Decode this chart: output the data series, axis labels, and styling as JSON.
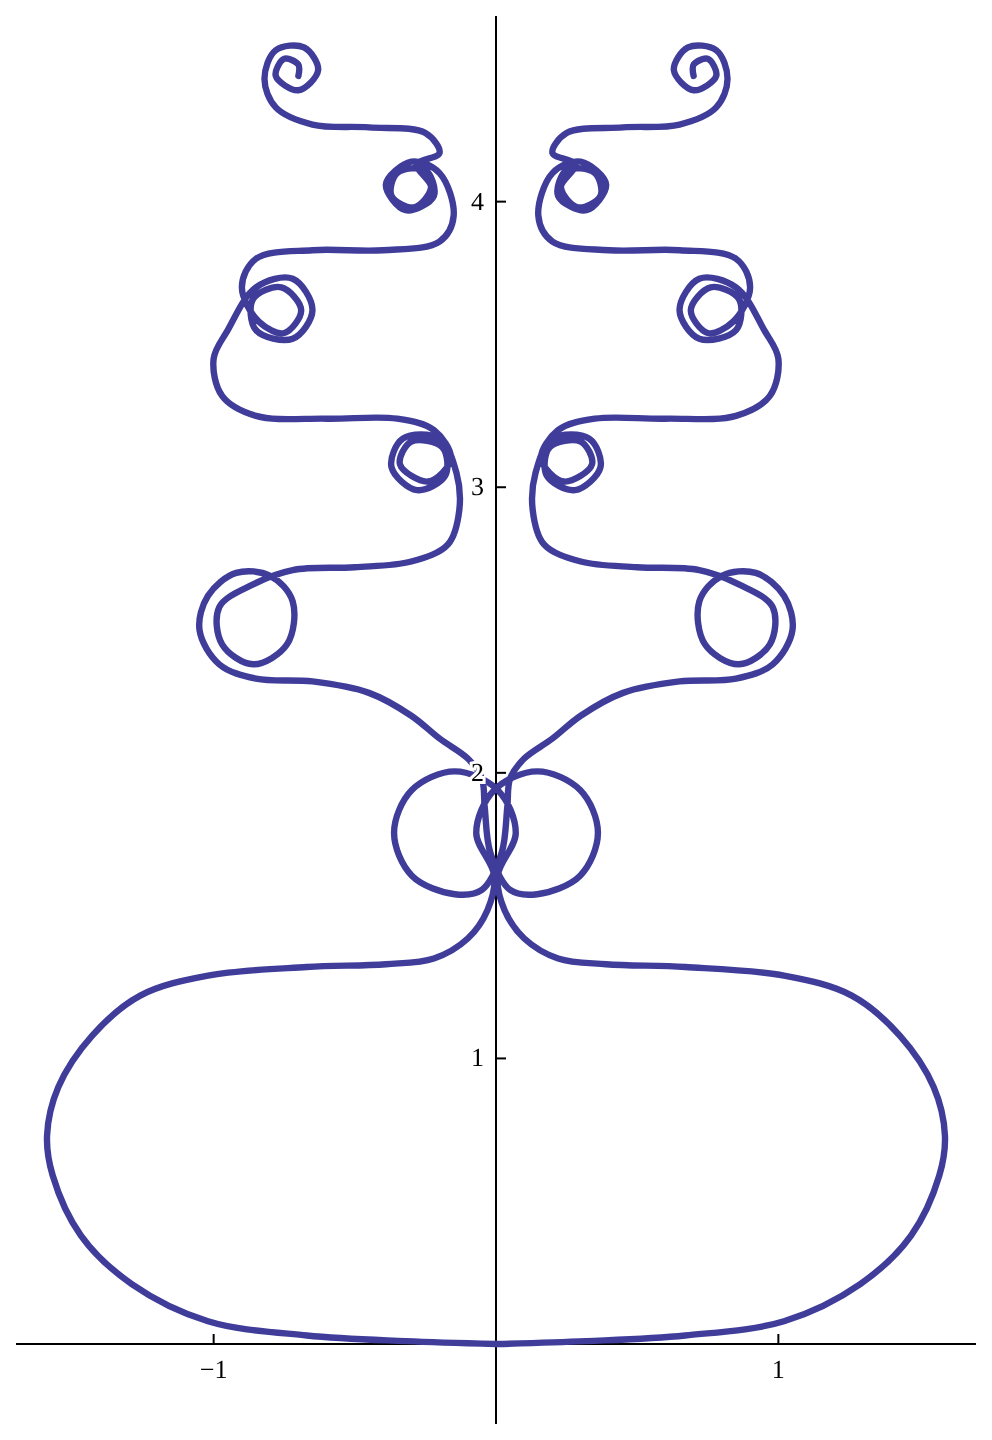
{
  "chart_data": {
    "type": "line",
    "xlim": [
      -1.7,
      1.7
    ],
    "ylim": [
      -0.28,
      4.65
    ],
    "xticks": [
      {
        "value": -1,
        "label": "−1"
      },
      1
    ],
    "yticks": [
      1,
      2,
      3,
      4
    ],
    "series": [
      {
        "color": "#3f3d99",
        "x": [
          0,
          0.32,
          0.67,
          1.02,
          1.29,
          1.47,
          1.57,
          1.59,
          1.55,
          1.43,
          1.26,
          1.02,
          0.67,
          0.39,
          0.22,
          0.1,
          0.03,
          0.006,
          0.07,
          0.006,
          -0.146,
          -0.298,
          -0.361,
          -0.298,
          -0.146,
          -0.05,
          0.02,
          0.04,
          0.05,
          0.1,
          0.2,
          0.3,
          0.45,
          0.65,
          0.85,
          0.98,
          1.05,
          1.02,
          0.92,
          0.8,
          0.72,
          0.74,
          0.86,
          0.97,
          0.98,
          0.86,
          0.72,
          0.5,
          0.3,
          0.17,
          0.13,
          0.14,
          0.2,
          0.33,
          0.37,
          0.28,
          0.18,
          0.19,
          0.3,
          0.34,
          0.24,
          0.16,
          0.22,
          0.35,
          0.6,
          0.85,
          0.97,
          1.0,
          0.95,
          0.85,
          0.72,
          0.65,
          0.72,
          0.85,
          0.86,
          0.76,
          0.69,
          0.75,
          0.84,
          0.9,
          0.85,
          0.65,
          0.4,
          0.2,
          0.15,
          0.2,
          0.3,
          0.39,
          0.32,
          0.22,
          0.25,
          0.35,
          0.37,
          0.29,
          0.23,
          0.28,
          0.2,
          0.25,
          0.45,
          0.65,
          0.78,
          0.82,
          0.78,
          0.68,
          0.63,
          0.7,
          0.78,
          0.75,
          0.7,
          0.7
        ],
        "values": [
          0,
          0.01,
          0.03,
          0.08,
          0.21,
          0.38,
          0.59,
          0.73,
          0.9,
          1.08,
          1.22,
          1.29,
          1.32,
          1.33,
          1.35,
          1.42,
          1.52,
          1.64,
          1.79,
          1.94,
          2.005,
          1.94,
          1.79,
          1.64,
          1.575,
          1.59,
          1.72,
          1.88,
          1.98,
          2.05,
          2.12,
          2.2,
          2.28,
          2.32,
          2.33,
          2.38,
          2.5,
          2.62,
          2.7,
          2.69,
          2.6,
          2.45,
          2.38,
          2.45,
          2.58,
          2.66,
          2.71,
          2.72,
          2.74,
          2.8,
          2.92,
          3.05,
          3.17,
          3.17,
          3.07,
          2.99,
          3.04,
          3.14,
          3.16,
          3.08,
          3.02,
          3.1,
          3.2,
          3.24,
          3.24,
          3.25,
          3.32,
          3.45,
          3.55,
          3.7,
          3.73,
          3.62,
          3.52,
          3.55,
          3.66,
          3.7,
          3.62,
          3.54,
          3.58,
          3.7,
          3.8,
          3.83,
          3.83,
          3.86,
          3.95,
          4.1,
          4.14,
          4.06,
          3.97,
          4.02,
          4.11,
          4.1,
          4.02,
          3.98,
          4.05,
          4.13,
          4.17,
          4.24,
          4.26,
          4.27,
          4.33,
          4.43,
          4.53,
          4.54,
          4.46,
          4.39,
          4.44,
          4.5,
          4.48,
          4.44
        ]
      },
      {
        "color": "#3f3d99",
        "x": [
          0,
          -0.32,
          -0.67,
          -1.02,
          -1.29,
          -1.47,
          -1.57,
          -1.59,
          -1.55,
          -1.43,
          -1.26,
          -1.02,
          -0.67,
          -0.39,
          -0.22,
          -0.1,
          -0.03,
          -0.006,
          -0.07,
          -0.006,
          0.146,
          0.298,
          0.361,
          0.298,
          0.146,
          0.05,
          -0.02,
          -0.04,
          -0.05,
          -0.1,
          -0.2,
          -0.3,
          -0.45,
          -0.65,
          -0.85,
          -0.98,
          -1.05,
          -1.02,
          -0.92,
          -0.8,
          -0.72,
          -0.74,
          -0.86,
          -0.97,
          -0.98,
          -0.86,
          -0.72,
          -0.5,
          -0.3,
          -0.17,
          -0.13,
          -0.14,
          -0.2,
          -0.33,
          -0.37,
          -0.28,
          -0.18,
          -0.19,
          -0.3,
          -0.34,
          -0.24,
          -0.16,
          -0.22,
          -0.35,
          -0.6,
          -0.85,
          -0.97,
          -1.0,
          -0.95,
          -0.85,
          -0.72,
          -0.65,
          -0.72,
          -0.85,
          -0.86,
          -0.76,
          -0.69,
          -0.75,
          -0.84,
          -0.9,
          -0.85,
          -0.65,
          -0.4,
          -0.2,
          -0.15,
          -0.2,
          -0.3,
          -0.39,
          -0.32,
          -0.22,
          -0.25,
          -0.35,
          -0.37,
          -0.29,
          -0.23,
          -0.28,
          -0.2,
          -0.25,
          -0.45,
          -0.65,
          -0.78,
          -0.82,
          -0.78,
          -0.68,
          -0.63,
          -0.7,
          -0.78,
          -0.75,
          -0.7,
          -0.7
        ],
        "values": [
          0,
          0.01,
          0.03,
          0.08,
          0.21,
          0.38,
          0.59,
          0.73,
          0.9,
          1.08,
          1.22,
          1.29,
          1.32,
          1.33,
          1.35,
          1.42,
          1.52,
          1.64,
          1.79,
          1.94,
          2.005,
          1.94,
          1.79,
          1.64,
          1.575,
          1.59,
          1.72,
          1.88,
          1.98,
          2.05,
          2.12,
          2.2,
          2.28,
          2.32,
          2.33,
          2.38,
          2.5,
          2.62,
          2.7,
          2.69,
          2.6,
          2.45,
          2.38,
          2.45,
          2.58,
          2.66,
          2.71,
          2.72,
          2.74,
          2.8,
          2.92,
          3.05,
          3.17,
          3.17,
          3.07,
          2.99,
          3.04,
          3.14,
          3.16,
          3.08,
          3.02,
          3.1,
          3.2,
          3.24,
          3.24,
          3.25,
          3.32,
          3.45,
          3.55,
          3.7,
          3.73,
          3.62,
          3.52,
          3.55,
          3.66,
          3.7,
          3.62,
          3.54,
          3.58,
          3.7,
          3.8,
          3.83,
          3.83,
          3.86,
          3.95,
          4.1,
          4.14,
          4.06,
          3.97,
          4.02,
          4.11,
          4.1,
          4.02,
          3.98,
          4.05,
          4.13,
          4.17,
          4.24,
          4.26,
          4.27,
          4.33,
          4.43,
          4.53,
          4.54,
          4.46,
          4.39,
          4.44,
          4.5,
          4.48,
          4.44
        ]
      }
    ]
  }
}
